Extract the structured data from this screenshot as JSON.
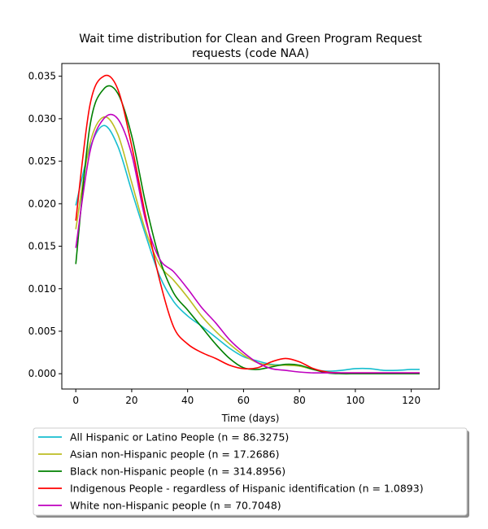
{
  "chart_data": {
    "type": "line",
    "title_line1": "Wait time distribution  for Clean and Green Program Request",
    "title_line2": "requests (code NAA)",
    "xlabel": "Time (days)",
    "ylabel": "",
    "xlim": [
      -5,
      130
    ],
    "ylim": [
      -0.0018,
      0.0365
    ],
    "xticks": [
      0,
      20,
      40,
      60,
      80,
      100,
      120
    ],
    "yticks": [
      0.0,
      0.005,
      0.01,
      0.015,
      0.02,
      0.025,
      0.03,
      0.035
    ],
    "grid": false,
    "legend_position": "bottom",
    "series": [
      {
        "name": "All Hispanic or Latino People (n = 86.3275)",
        "color": "#17becf",
        "x": [
          0,
          5,
          10,
          15,
          20,
          25,
          30,
          35,
          40,
          45,
          50,
          55,
          60,
          65,
          70,
          75,
          80,
          85,
          90,
          95,
          100,
          105,
          110,
          115,
          120,
          123
        ],
        "y": [
          0.0198,
          0.0265,
          0.0292,
          0.0268,
          0.0215,
          0.0163,
          0.0115,
          0.0085,
          0.0068,
          0.0056,
          0.0043,
          0.003,
          0.002,
          0.0015,
          0.0011,
          0.001,
          0.0009,
          0.0005,
          0.0003,
          0.0004,
          0.0006,
          0.0006,
          0.0004,
          0.0004,
          0.0005,
          0.0005
        ]
      },
      {
        "name": "Asian non-Hispanic people (n = 17.2686)",
        "color": "#bcbd22",
        "x": [
          0,
          5,
          10,
          15,
          20,
          25,
          30,
          35,
          40,
          45,
          50,
          55,
          60,
          65,
          70,
          75,
          80,
          85,
          90,
          95,
          100,
          105,
          110,
          115,
          120,
          123
        ],
        "y": [
          0.017,
          0.027,
          0.0302,
          0.0282,
          0.0225,
          0.0168,
          0.0128,
          0.011,
          0.009,
          0.0068,
          0.005,
          0.0035,
          0.0022,
          0.0013,
          0.001,
          0.001,
          0.0009,
          0.0005,
          0.0002,
          0.0001,
          0.0001,
          0.0001,
          0.0001,
          0.0001,
          0.0001,
          0.0001
        ]
      },
      {
        "name": "Black non-Hispanic people (n = 314.8956)",
        "color": "#008000",
        "x": [
          0,
          5,
          10,
          15,
          20,
          25,
          30,
          35,
          40,
          45,
          50,
          55,
          60,
          65,
          70,
          75,
          80,
          85,
          90,
          95,
          100,
          105,
          110,
          115,
          120,
          123
        ],
        "y": [
          0.0129,
          0.029,
          0.0335,
          0.033,
          0.028,
          0.02,
          0.0135,
          0.0095,
          0.0075,
          0.0055,
          0.0035,
          0.0018,
          0.0007,
          0.0005,
          0.0008,
          0.0011,
          0.001,
          0.0005,
          0.0001,
          0.0,
          0.0,
          0.0,
          0.0,
          0.0,
          0.0,
          0.0
        ]
      },
      {
        "name": "Indigenous People - regardless of Hispanic identification (n = 1.0893)",
        "color": "#ff0000",
        "x": [
          0,
          5,
          10,
          15,
          20,
          25,
          30,
          35,
          40,
          45,
          50,
          55,
          60,
          65,
          70,
          75,
          80,
          85,
          90,
          95,
          100,
          105,
          110,
          115,
          120,
          123
        ],
        "y": [
          0.018,
          0.0315,
          0.035,
          0.0335,
          0.0268,
          0.0185,
          0.011,
          0.0055,
          0.0035,
          0.0025,
          0.0018,
          0.001,
          0.0006,
          0.0007,
          0.0014,
          0.0018,
          0.0014,
          0.0006,
          0.0002,
          0.0001,
          0.0001,
          0.0001,
          0.0001,
          0.0001,
          0.0001,
          0.0001
        ]
      },
      {
        "name": "White non-Hispanic people (n = 70.7048)",
        "color": "#bf00bf",
        "x": [
          0,
          5,
          10,
          15,
          20,
          25,
          30,
          35,
          40,
          45,
          50,
          55,
          60,
          65,
          70,
          75,
          80,
          85,
          90,
          95,
          100,
          105,
          110,
          115,
          120,
          123
        ],
        "y": [
          0.0148,
          0.026,
          0.03,
          0.03,
          0.0258,
          0.018,
          0.0135,
          0.012,
          0.01,
          0.0078,
          0.006,
          0.004,
          0.0025,
          0.0013,
          0.0006,
          0.0004,
          0.0002,
          0.0001,
          0.0001,
          0.0001,
          0.0001,
          0.0001,
          0.0001,
          0.0001,
          0.0001,
          0.0001
        ]
      }
    ]
  }
}
